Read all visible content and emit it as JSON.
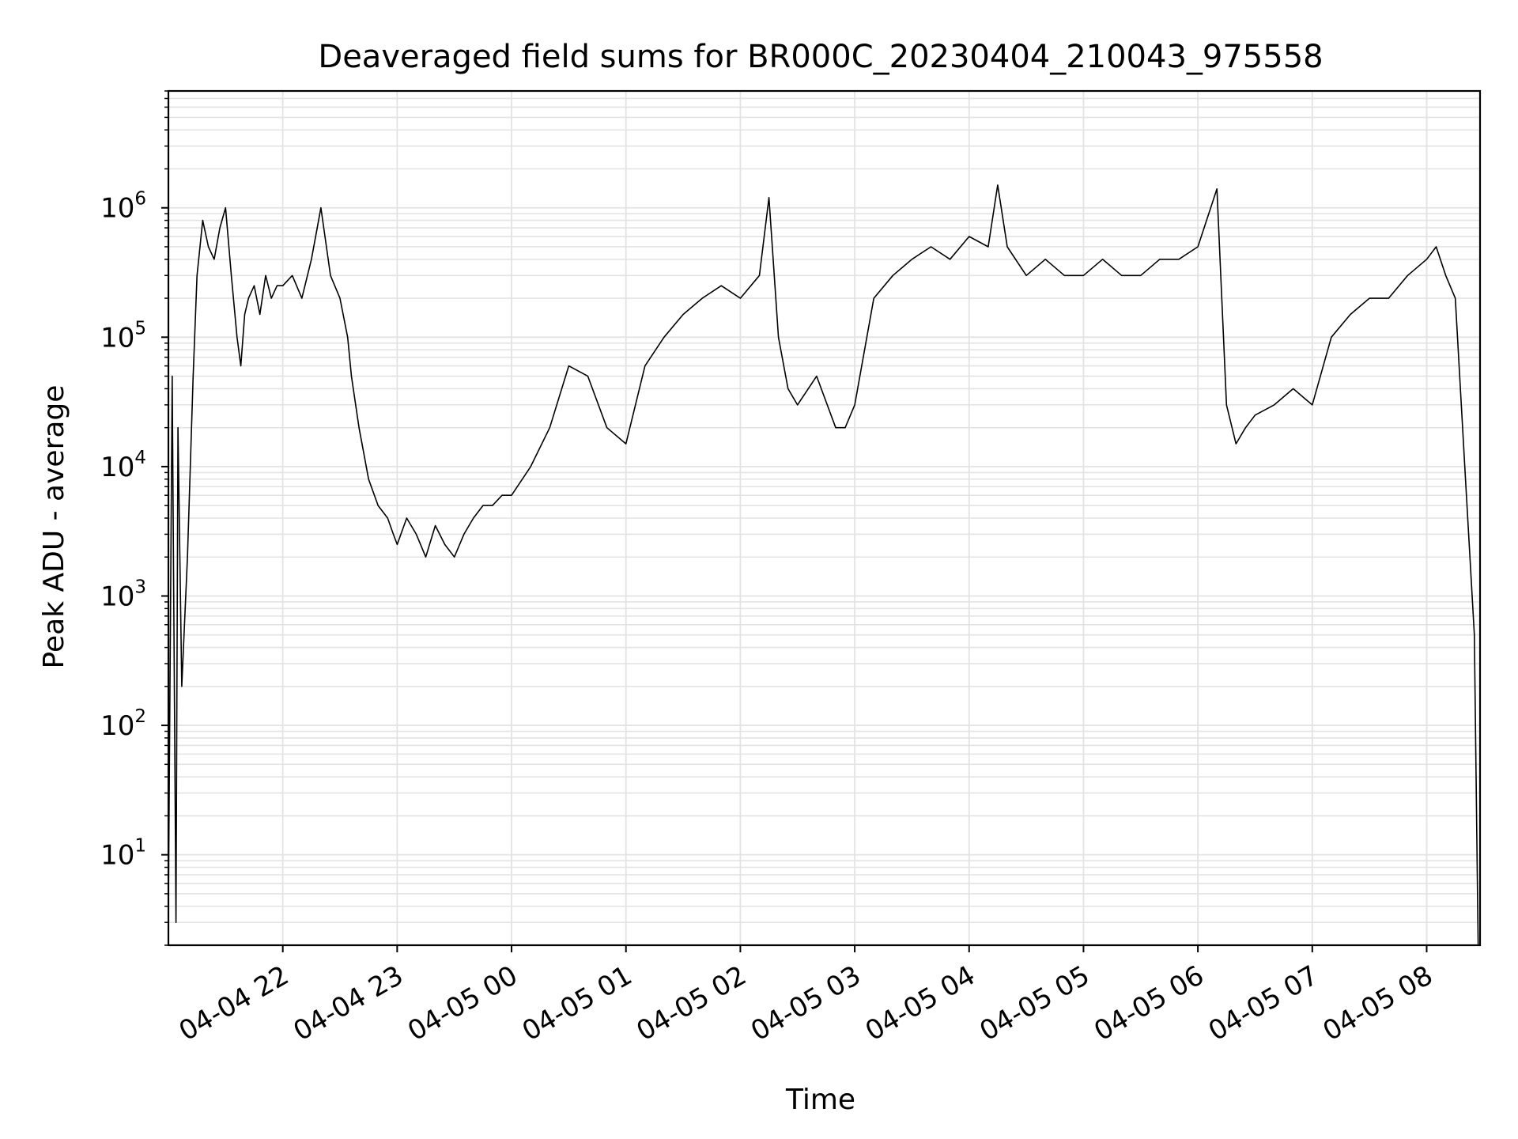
{
  "chart_data": {
    "type": "line",
    "title": "Deaveraged field sums for BR000C_20230404_210043_975558",
    "xlabel": "Time",
    "ylabel": "Peak ADU - average",
    "yscale": "log",
    "ylim": [
      2,
      8000000
    ],
    "xlim": [
      "2023-04-04 21:00",
      "2023-04-05 08:28"
    ],
    "x_tick_labels": [
      "04-04 22",
      "04-04 23",
      "04-05 00",
      "04-05 01",
      "04-05 02",
      "04-05 03",
      "04-05 04",
      "04-05 05",
      "04-05 06",
      "04-05 07",
      "04-05 08"
    ],
    "x_ticks": [
      "2023-04-04 22:00",
      "2023-04-04 23:00",
      "2023-04-05 00:00",
      "2023-04-05 01:00",
      "2023-04-05 02:00",
      "2023-04-05 03:00",
      "2023-04-05 04:00",
      "2023-04-05 05:00",
      "2023-04-05 06:00",
      "2023-04-05 07:00",
      "2023-04-05 08:00"
    ],
    "y_ticks": [
      {
        "value": 10,
        "base": "10",
        "exp": "1"
      },
      {
        "value": 100,
        "base": "10",
        "exp": "2"
      },
      {
        "value": 1000,
        "base": "10",
        "exp": "3"
      },
      {
        "value": 10000,
        "base": "10",
        "exp": "4"
      },
      {
        "value": 100000,
        "base": "10",
        "exp": "5"
      },
      {
        "value": 1000000,
        "base": "10",
        "exp": "6"
      }
    ],
    "grid": true,
    "line_color": "#000000",
    "grid_color": "#e3e3e3",
    "series": [
      {
        "x": [
          "2023-04-04 21:00",
          "2023-04-04 21:02",
          "2023-04-04 21:04",
          "2023-04-04 21:05",
          "2023-04-04 21:07",
          "2023-04-04 21:10",
          "2023-04-04 21:13",
          "2023-04-04 21:15",
          "2023-04-04 21:18",
          "2023-04-04 21:21",
          "2023-04-04 21:24",
          "2023-04-04 21:27",
          "2023-04-04 21:30",
          "2023-04-04 21:33",
          "2023-04-04 21:36",
          "2023-04-04 21:38",
          "2023-04-04 21:40",
          "2023-04-04 21:42",
          "2023-04-04 21:45",
          "2023-04-04 21:48",
          "2023-04-04 21:51",
          "2023-04-04 21:54",
          "2023-04-04 21:57",
          "2023-04-04 22:00",
          "2023-04-04 22:05",
          "2023-04-04 22:10",
          "2023-04-04 22:15",
          "2023-04-04 22:20",
          "2023-04-04 22:25",
          "2023-04-04 22:30",
          "2023-04-04 22:34",
          "2023-04-04 22:36",
          "2023-04-04 22:40",
          "2023-04-04 22:45",
          "2023-04-04 22:50",
          "2023-04-04 22:55",
          "2023-04-04 22:58",
          "2023-04-04 23:00",
          "2023-04-04 23:05",
          "2023-04-04 23:10",
          "2023-04-04 23:15",
          "2023-04-04 23:20",
          "2023-04-04 23:25",
          "2023-04-04 23:30",
          "2023-04-04 23:35",
          "2023-04-04 23:40",
          "2023-04-04 23:45",
          "2023-04-04 23:50",
          "2023-04-04 23:55",
          "2023-04-05 00:00",
          "2023-04-05 00:10",
          "2023-04-05 00:20",
          "2023-04-05 00:30",
          "2023-04-05 00:40",
          "2023-04-05 00:50",
          "2023-04-05 01:00",
          "2023-04-05 01:10",
          "2023-04-05 01:20",
          "2023-04-05 01:30",
          "2023-04-05 01:40",
          "2023-04-05 01:50",
          "2023-04-05 02:00",
          "2023-04-05 02:10",
          "2023-04-05 02:15",
          "2023-04-05 02:20",
          "2023-04-05 02:25",
          "2023-04-05 02:30",
          "2023-04-05 02:40",
          "2023-04-05 02:50",
          "2023-04-05 02:55",
          "2023-04-05 03:00",
          "2023-04-05 03:10",
          "2023-04-05 03:20",
          "2023-04-05 03:30",
          "2023-04-05 03:40",
          "2023-04-05 03:50",
          "2023-04-05 04:00",
          "2023-04-05 04:10",
          "2023-04-05 04:15",
          "2023-04-05 04:20",
          "2023-04-05 04:30",
          "2023-04-05 04:40",
          "2023-04-05 04:50",
          "2023-04-05 05:00",
          "2023-04-05 05:10",
          "2023-04-05 05:20",
          "2023-04-05 05:30",
          "2023-04-05 05:40",
          "2023-04-05 05:50",
          "2023-04-05 06:00",
          "2023-04-05 06:10",
          "2023-04-05 06:15",
          "2023-04-05 06:20",
          "2023-04-05 06:25",
          "2023-04-05 06:30",
          "2023-04-05 06:40",
          "2023-04-05 06:50",
          "2023-04-05 07:00",
          "2023-04-05 07:10",
          "2023-04-05 07:20",
          "2023-04-05 07:30",
          "2023-04-05 07:40",
          "2023-04-05 07:50",
          "2023-04-05 08:00",
          "2023-04-05 08:05",
          "2023-04-05 08:10",
          "2023-04-05 08:15",
          "2023-04-05 08:20",
          "2023-04-05 08:25",
          "2023-04-05 08:27"
        ],
        "y": [
          4,
          50000,
          3,
          20000,
          200,
          2000,
          50000,
          300000,
          800000,
          500000,
          400000,
          700000,
          1000000,
          300000,
          100000,
          60000,
          150000,
          200000,
          250000,
          150000,
          300000,
          200000,
          250000,
          250000,
          300000,
          200000,
          400000,
          1000000,
          300000,
          200000,
          100000,
          50000,
          20000,
          8000,
          5000,
          4000,
          3000,
          2500,
          4000,
          3000,
          2000,
          3500,
          2500,
          2000,
          3000,
          4000,
          5000,
          5000,
          6000,
          6000,
          10000,
          20000,
          60000,
          50000,
          20000,
          15000,
          60000,
          100000,
          150000,
          200000,
          250000,
          200000,
          300000,
          1200000,
          100000,
          40000,
          30000,
          50000,
          20000,
          20000,
          30000,
          200000,
          300000,
          400000,
          500000,
          400000,
          600000,
          500000,
          1500000,
          500000,
          300000,
          400000,
          300000,
          300000,
          400000,
          300000,
          300000,
          400000,
          400000,
          500000,
          1400000,
          30000,
          15000,
          20000,
          25000,
          30000,
          40000,
          30000,
          100000,
          150000,
          200000,
          200000,
          300000,
          400000,
          500000,
          300000,
          200000,
          10000,
          500,
          2
        ]
      }
    ]
  }
}
